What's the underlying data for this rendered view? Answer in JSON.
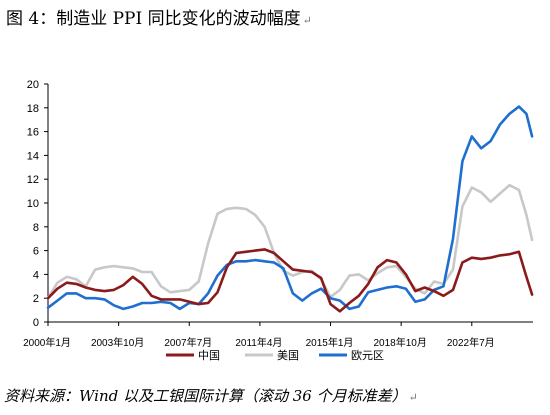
{
  "page": {
    "title": "图 4：制造业 PPI 同比变化的波动幅度",
    "source": "资料来源：Wind 以及工银国际计算（滚动 36 个月标准差）",
    "paragraph_mark": "↵"
  },
  "chart_data": {
    "type": "line",
    "title": "",
    "xlabel": "",
    "ylabel": "",
    "ylim": [
      0,
      20
    ],
    "yticks": [
      0,
      2,
      4,
      6,
      8,
      10,
      12,
      14,
      16,
      18,
      20
    ],
    "xlim": [
      2000.0,
      2025.75
    ],
    "xtick_labels": [
      {
        "t": 2000.0,
        "label": "2000年1月"
      },
      {
        "t": 2003.75,
        "label": "2003年10月"
      },
      {
        "t": 2007.5,
        "label": "2007年7月"
      },
      {
        "t": 2011.25,
        "label": "2011年4月"
      },
      {
        "t": 2015.0,
        "label": "2015年1月"
      },
      {
        "t": 2018.75,
        "label": "2018年10月"
      },
      {
        "t": 2022.5,
        "label": "2022年7月"
      }
    ],
    "grid": false,
    "legend": "bottom",
    "series": [
      {
        "name": "中国",
        "color": "#8B1A1A",
        "x": [
          2000.0,
          2000.5,
          2001.0,
          2001.5,
          2002.0,
          2002.5,
          2003.0,
          2003.5,
          2004.0,
          2004.5,
          2005.0,
          2005.5,
          2006.0,
          2006.5,
          2007.0,
          2007.5,
          2008.0,
          2008.5,
          2009.0,
          2009.5,
          2010.0,
          2010.5,
          2011.0,
          2011.5,
          2012.0,
          2012.5,
          2013.0,
          2013.5,
          2014.0,
          2014.5,
          2015.0,
          2015.5,
          2016.0,
          2016.5,
          2017.0,
          2017.5,
          2018.0,
          2018.5,
          2019.0,
          2019.5,
          2020.0,
          2020.5,
          2021.0,
          2021.5,
          2022.0,
          2022.5,
          2023.0,
          2023.5,
          2024.0,
          2024.5,
          2025.0,
          2025.4,
          2025.7
        ],
        "values": [
          2.0,
          2.8,
          3.3,
          3.2,
          2.9,
          2.7,
          2.6,
          2.7,
          3.1,
          3.8,
          3.2,
          2.2,
          1.9,
          1.9,
          1.9,
          1.7,
          1.5,
          1.6,
          2.5,
          4.6,
          5.8,
          5.9,
          6.0,
          6.1,
          5.8,
          5.1,
          4.4,
          4.3,
          4.2,
          3.7,
          1.5,
          0.9,
          1.6,
          2.2,
          3.2,
          4.6,
          5.2,
          5.0,
          4.0,
          2.6,
          2.9,
          2.6,
          2.2,
          2.7,
          5.0,
          5.4,
          5.3,
          5.4,
          5.6,
          5.7,
          5.9,
          3.8,
          2.3
        ]
      },
      {
        "name": "美国",
        "color": "#C8C8C8",
        "x": [
          2000.0,
          2000.5,
          2001.0,
          2001.5,
          2002.0,
          2002.5,
          2003.0,
          2003.5,
          2004.0,
          2004.5,
          2005.0,
          2005.5,
          2006.0,
          2006.5,
          2007.0,
          2007.5,
          2008.0,
          2008.5,
          2009.0,
          2009.5,
          2010.0,
          2010.5,
          2011.0,
          2011.5,
          2012.0,
          2012.5,
          2013.0,
          2013.5,
          2014.0,
          2014.5,
          2015.0,
          2015.5,
          2016.0,
          2016.5,
          2017.0,
          2017.5,
          2018.0,
          2018.5,
          2019.0,
          2019.5,
          2020.0,
          2020.5,
          2021.0,
          2021.5,
          2022.0,
          2022.5,
          2023.0,
          2023.5,
          2024.0,
          2024.5,
          2025.0,
          2025.4,
          2025.7
        ],
        "values": [
          2.0,
          3.3,
          3.8,
          3.6,
          3.0,
          4.4,
          4.6,
          4.7,
          4.6,
          4.5,
          4.2,
          4.2,
          3.0,
          2.5,
          2.6,
          2.7,
          3.4,
          6.6,
          9.1,
          9.5,
          9.6,
          9.5,
          9.0,
          8.0,
          5.8,
          4.3,
          3.9,
          4.2,
          4.3,
          3.6,
          2.1,
          2.7,
          3.9,
          4.0,
          3.5,
          4.1,
          4.6,
          4.7,
          3.8,
          2.8,
          2.4,
          3.4,
          3.2,
          4.4,
          9.7,
          11.3,
          10.9,
          10.1,
          10.8,
          11.5,
          11.1,
          9.0,
          6.9
        ]
      },
      {
        "name": "欧元区",
        "color": "#1F6FD0",
        "x": [
          2000.0,
          2000.5,
          2001.0,
          2001.5,
          2002.0,
          2002.5,
          2003.0,
          2003.5,
          2004.0,
          2004.5,
          2005.0,
          2005.5,
          2006.0,
          2006.5,
          2007.0,
          2007.5,
          2008.0,
          2008.5,
          2009.0,
          2009.5,
          2010.0,
          2010.5,
          2011.0,
          2011.5,
          2012.0,
          2012.5,
          2013.0,
          2013.5,
          2014.0,
          2014.5,
          2015.0,
          2015.5,
          2016.0,
          2016.5,
          2017.0,
          2017.5,
          2018.0,
          2018.5,
          2019.0,
          2019.5,
          2020.0,
          2020.5,
          2021.0,
          2021.5,
          2022.0,
          2022.5,
          2023.0,
          2023.5,
          2024.0,
          2024.5,
          2025.0,
          2025.4,
          2025.7
        ],
        "values": [
          1.2,
          1.8,
          2.4,
          2.4,
          2.0,
          2.0,
          1.9,
          1.4,
          1.1,
          1.3,
          1.6,
          1.6,
          1.7,
          1.6,
          1.1,
          1.6,
          1.5,
          2.4,
          3.9,
          4.8,
          5.1,
          5.1,
          5.2,
          5.1,
          5.0,
          4.5,
          2.4,
          1.8,
          2.4,
          2.8,
          2.0,
          1.8,
          1.1,
          1.3,
          2.5,
          2.7,
          2.9,
          3.0,
          2.8,
          1.7,
          1.9,
          2.7,
          3.0,
          7.0,
          13.5,
          15.6,
          14.6,
          15.2,
          16.6,
          17.5,
          18.1,
          17.5,
          15.6
        ]
      }
    ]
  }
}
